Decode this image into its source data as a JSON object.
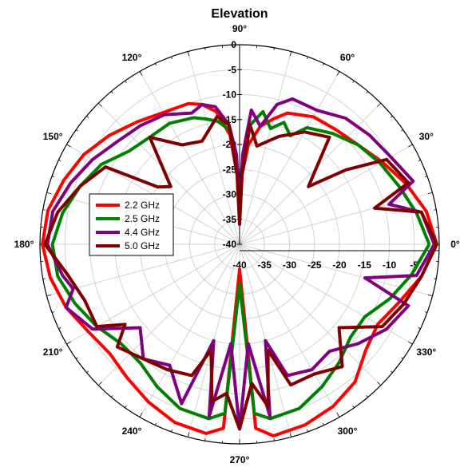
{
  "chart_data": {
    "type": "line",
    "coordinate_system": "polar",
    "title": "Elevation",
    "radial_axis": {
      "min": -40,
      "max": 0,
      "ticks": [
        -40,
        -35,
        -30,
        -25,
        -20,
        -15,
        -10,
        -5,
        0
      ],
      "tick_labels": [
        "-40",
        "-35",
        "-30",
        "-25",
        "-20",
        "-15",
        "-10",
        "-5",
        "0"
      ]
    },
    "angular_axis": {
      "unit": "degrees",
      "ticks": [
        0,
        30,
        60,
        90,
        120,
        150,
        180,
        210,
        240,
        270,
        300,
        330
      ],
      "tick_labels": [
        "0°",
        "30°",
        "60°",
        "90°",
        "120°",
        "150°",
        "180°",
        "210°",
        "240°",
        "270°",
        "300°",
        "330°"
      ],
      "direction": "counterclockwise",
      "zero_at": "right"
    },
    "grid": true,
    "legend": {
      "placement": "left"
    },
    "series": [
      {
        "name": "2.2 GHz",
        "color": "#ff0000",
        "theta": [
          0,
          10,
          20,
          30,
          40,
          50,
          60,
          70,
          75,
          80,
          85,
          88,
          90,
          92,
          95,
          100,
          105,
          110,
          120,
          130,
          140,
          150,
          160,
          170,
          180,
          190,
          200,
          210,
          220,
          230,
          240,
          250,
          260,
          265,
          270,
          275,
          280,
          290,
          300,
          310,
          320,
          330,
          340,
          350,
          360
        ],
        "r": [
          -0.5,
          -2,
          -4.5,
          -7,
          -9,
          -10,
          -10.5,
          -12,
          -14,
          -16,
          -20,
          -26,
          -35,
          -26,
          -18,
          -13,
          -11,
          -10,
          -9.5,
          -8,
          -6,
          -4,
          -2.5,
          -1,
          -0.5,
          -1.5,
          -3,
          -5,
          -6,
          -5,
          -3.5,
          -2,
          -1.5,
          -3,
          -35,
          -3,
          -1,
          -1.5,
          -2.5,
          -4,
          -7,
          -8,
          -6,
          -3,
          -0.5
        ]
      },
      {
        "name": "2.5 GHz",
        "color": "#008000",
        "theta": [
          0,
          10,
          20,
          30,
          40,
          50,
          60,
          65,
          70,
          75,
          80,
          85,
          88,
          90,
          92,
          95,
          100,
          105,
          110,
          120,
          130,
          140,
          150,
          160,
          170,
          180,
          190,
          200,
          210,
          220,
          230,
          240,
          250,
          260,
          265,
          270,
          275,
          280,
          290,
          300,
          310,
          320,
          330,
          340,
          350,
          360
        ],
        "r": [
          -2,
          -4,
          -6,
          -7.5,
          -9,
          -11,
          -13,
          -16,
          -14,
          -16,
          -13,
          -16,
          -24,
          -32,
          -24,
          -17,
          -15,
          -14,
          -13,
          -12,
          -12,
          -11,
          -8,
          -6,
          -4,
          -2.5,
          -3,
          -5,
          -7,
          -9,
          -9,
          -7,
          -5,
          -4.5,
          -6,
          -32,
          -6,
          -4.5,
          -5,
          -7,
          -9,
          -11,
          -11,
          -8,
          -5,
          -2
        ]
      },
      {
        "name": "4.4 GHz",
        "color": "#800080",
        "theta": [
          0,
          10,
          15,
          20,
          30,
          40,
          50,
          60,
          70,
          75,
          80,
          85,
          88,
          90,
          92,
          95,
          100,
          105,
          110,
          120,
          130,
          140,
          150,
          160,
          170,
          180,
          190,
          195,
          200,
          210,
          220,
          230,
          240,
          250,
          255,
          260,
          265,
          270,
          275,
          280,
          285,
          290,
          300,
          310,
          320,
          330,
          340,
          345,
          350,
          360
        ],
        "r": [
          -1,
          -3,
          -9,
          -3,
          -5,
          -6,
          -7,
          -9,
          -9,
          -11,
          -16,
          -13,
          -22,
          -33,
          -22,
          -16,
          -12,
          -11,
          -12,
          -10,
          -9,
          -8,
          -6,
          -4,
          -2,
          -1.5,
          -4,
          -5.5,
          -3,
          -6,
          -14,
          -10,
          -12,
          -6,
          -20,
          -5,
          -20,
          -3,
          -20,
          -5,
          -20,
          -12,
          -11,
          -12,
          -9,
          -6,
          -4,
          -14,
          -4,
          -1
        ]
      },
      {
        "name": "5.0 GHz",
        "color": "#800000",
        "theta": [
          0,
          10,
          15,
          20,
          30,
          35,
          40,
          50,
          60,
          70,
          80,
          85,
          88,
          90,
          92,
          95,
          100,
          110,
          120,
          130,
          140,
          145,
          150,
          160,
          170,
          180,
          190,
          200,
          210,
          215,
          220,
          230,
          240,
          250,
          255,
          260,
          265,
          270,
          275,
          280,
          285,
          290,
          300,
          310,
          320,
          330,
          340,
          350,
          360
        ],
        "r": [
          -0.5,
          -3,
          -12,
          -4,
          -6,
          -14,
          -22,
          -12,
          -14,
          -17,
          -20,
          -16,
          -26,
          -36,
          -26,
          -16,
          -14,
          -18,
          -17,
          -12,
          -22,
          -20,
          -9,
          -6,
          -3,
          -1,
          -5,
          -7,
          -7,
          -12,
          -8,
          -10,
          -11,
          -12,
          -18,
          -8,
          -10,
          -3,
          -12,
          -7,
          -18,
          -10,
          -10,
          -8,
          -14,
          -7,
          -5,
          -3,
          -0.5
        ]
      }
    ]
  }
}
